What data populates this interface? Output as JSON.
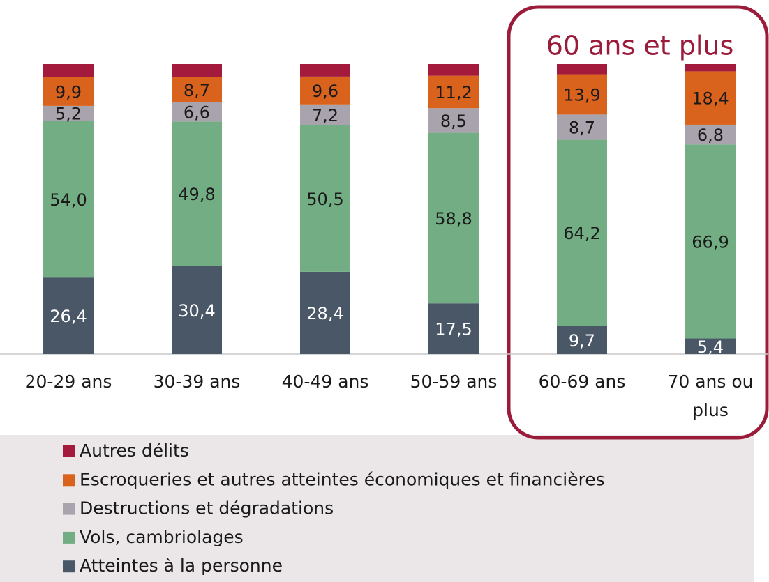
{
  "chart_data": {
    "type": "stacked_bar",
    "categories": [
      "20-29 ans",
      "30-39 ans",
      "40-49 ans",
      "50-59 ans",
      "60-69 ans",
      "70 ans ou plus"
    ],
    "ylim": [
      0,
      100
    ],
    "annotation": "60 ans et plus",
    "legend": "bottom",
    "series": [
      {
        "name": "Autres délits",
        "color": "#a31a3c",
        "values": [
          4.5,
          4.5,
          4.3,
          4.0,
          3.5,
          2.5
        ]
      },
      {
        "name": "Escroqueries et autres atteintes économiques et financières",
        "color": "#d9621c",
        "values": [
          9.9,
          8.7,
          9.6,
          11.2,
          13.9,
          18.4
        ],
        "value_labels": [
          "9,9",
          "8,7",
          "9,6",
          "11,2",
          "13,9",
          "18,4"
        ]
      },
      {
        "name": "Destructions et dégradations",
        "color": "#a8a3ad",
        "values": [
          5.2,
          6.6,
          7.2,
          8.5,
          8.7,
          6.8
        ],
        "value_labels": [
          "5,2",
          "6,6",
          "7,2",
          "8,5",
          "8,7",
          "6,8"
        ]
      },
      {
        "name": "Vols, cambriolages",
        "color": "#72ad84",
        "values": [
          54.0,
          49.8,
          50.5,
          58.8,
          64.2,
          66.9
        ],
        "value_labels": [
          "54,0",
          "49,8",
          "50,5",
          "58,8",
          "64,2",
          "66,9"
        ]
      },
      {
        "name": "Atteintes à la personne",
        "color": "#495767",
        "values": [
          26.4,
          30.4,
          28.4,
          17.5,
          9.7,
          5.4
        ],
        "value_labels": [
          "26,4",
          "30,4",
          "28,4",
          "17,5",
          "9,7",
          "5,4"
        ]
      }
    ]
  }
}
